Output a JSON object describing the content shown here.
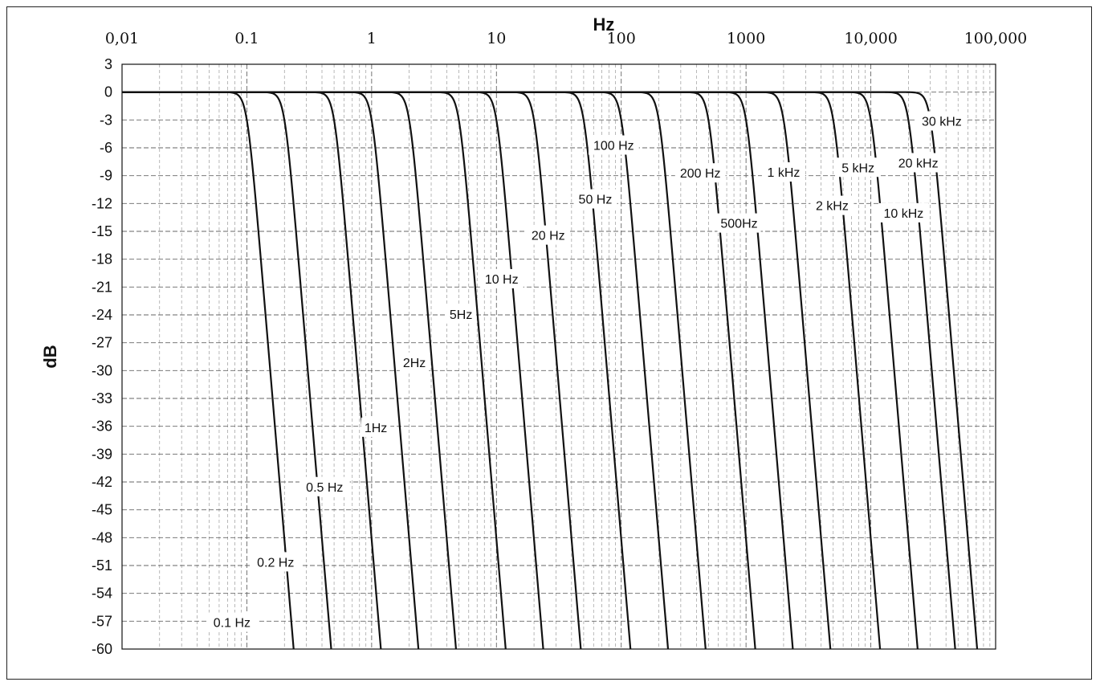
{
  "chart_data": {
    "type": "line",
    "title": "",
    "xlabel": "Hz",
    "ylabel": "dB",
    "xscale": "log",
    "xlim": [
      0.01,
      100000
    ],
    "ylim": [
      -60,
      3
    ],
    "x_tick_labels": [
      "0,01",
      "0.1",
      "1",
      "10",
      "100",
      "1000",
      "10,000",
      "100,000"
    ],
    "x_tick_values": [
      0.01,
      0.1,
      1,
      10,
      100,
      1000,
      10000,
      100000
    ],
    "y_tick_values": [
      3,
      0,
      -3,
      -6,
      -9,
      -12,
      -15,
      -18,
      -21,
      -24,
      -27,
      -30,
      -33,
      -36,
      -39,
      -42,
      -45,
      -48,
      -51,
      -54,
      -57,
      -60
    ],
    "y_tick_labels": [
      "3",
      "0",
      "-3",
      "-6",
      "-9",
      "-12",
      "-15",
      "-18",
      "-21",
      "-24",
      "-27",
      "-30",
      "-33",
      "-36",
      "-39",
      "-42",
      "-45",
      "-48",
      "-51",
      "-54",
      "-57",
      "-60"
    ],
    "grid": true,
    "legend": "none",
    "filter_order": 8,
    "series_color": "#111111",
    "series": [
      {
        "label": "0.1 Hz",
        "cutoff_hz": 0.1,
        "label_at": [
          0.076,
          -57.1
        ]
      },
      {
        "label": "0.2 Hz",
        "cutoff_hz": 0.2,
        "label_at": [
          0.17,
          -50.6
        ]
      },
      {
        "label": "0.5 Hz",
        "cutoff_hz": 0.5,
        "label_at": [
          0.42,
          -42.5
        ]
      },
      {
        "label": "1Hz",
        "cutoff_hz": 1,
        "label_at": [
          1.08,
          -36.1
        ]
      },
      {
        "label": "2Hz",
        "cutoff_hz": 2,
        "label_at": [
          2.2,
          -29.1
        ]
      },
      {
        "label": "5Hz",
        "cutoff_hz": 5,
        "label_at": [
          5.2,
          -23.9
        ]
      },
      {
        "label": "10 Hz",
        "cutoff_hz": 10,
        "label_at": [
          11,
          -20.1
        ]
      },
      {
        "label": "20 Hz",
        "cutoff_hz": 20,
        "label_at": [
          26,
          -15.4
        ]
      },
      {
        "label": "50 Hz",
        "cutoff_hz": 50,
        "label_at": [
          62,
          -11.5
        ]
      },
      {
        "label": "100 Hz",
        "cutoff_hz": 100,
        "label_at": [
          87,
          -5.7
        ]
      },
      {
        "label": "200 Hz",
        "cutoff_hz": 200,
        "label_at": [
          430,
          -8.7
        ]
      },
      {
        "label": "500Hz",
        "cutoff_hz": 500,
        "label_at": [
          880,
          -14.1
        ]
      },
      {
        "label": "1 kHz",
        "cutoff_hz": 1000,
        "label_at": [
          2000,
          -8.6
        ]
      },
      {
        "label": "2 kHz",
        "cutoff_hz": 2000,
        "label_at": [
          4900,
          -12.2
        ]
      },
      {
        "label": "5 kHz",
        "cutoff_hz": 5000,
        "label_at": [
          7900,
          -8.1
        ]
      },
      {
        "label": "10 kHz",
        "cutoff_hz": 10000,
        "label_at": [
          18300,
          -13
        ]
      },
      {
        "label": "20 kHz",
        "cutoff_hz": 20000,
        "label_at": [
          24000,
          -7.6
        ]
      },
      {
        "label": "30 kHz",
        "cutoff_hz": 30000,
        "label_at": [
          37000,
          -3.1
        ]
      }
    ]
  }
}
